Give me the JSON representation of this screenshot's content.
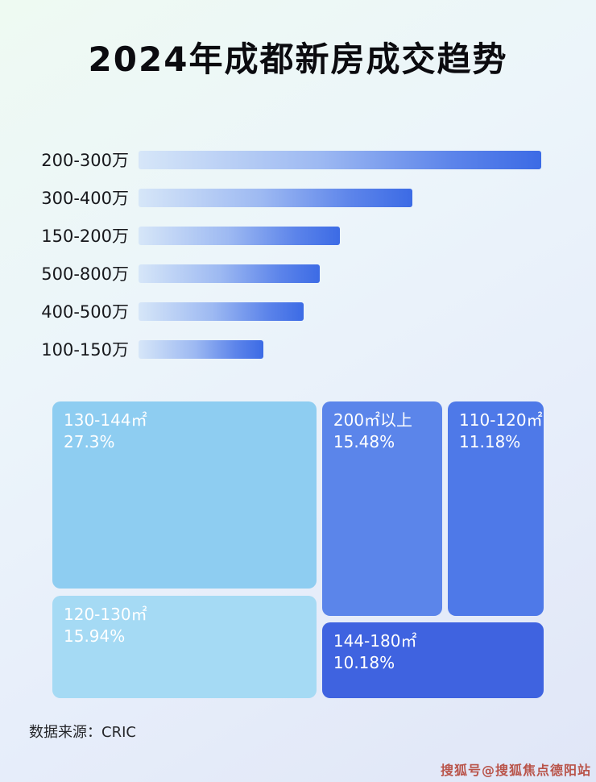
{
  "page": {
    "title": "2024年成都新房成交趋势",
    "source_label": "数据来源：CRIC",
    "watermark": "搜狐号@搜狐焦点德阳站"
  },
  "colors": {
    "bar_gradient_start": "#d6e6f8",
    "bar_gradient_end": "#3c6be5",
    "watermark_color": "#b23a2c",
    "background_top": "#eefaf2",
    "background_bottom": "#e0e6f7"
  },
  "chart_data": [
    {
      "type": "bar",
      "title": "2024年成都新房成交趋势",
      "orientation": "horizontal",
      "categories": [
        "200-300万",
        "300-400万",
        "150-200万",
        "500-800万",
        "400-500万",
        "100-150万"
      ],
      "values_pct_of_max": [
        100,
        68,
        50,
        45,
        41,
        31
      ],
      "axis_labels_shown": false,
      "grid": false,
      "legend": false
    },
    {
      "type": "treemap",
      "items": [
        {
          "label": "130-144㎡",
          "share": "27.3%",
          "color": "#8ecdf1",
          "x": 0,
          "y": 0,
          "w": 53.8,
          "h": 63.0
        },
        {
          "label": "120-130㎡",
          "share": "15.94%",
          "color": "#a5daf4",
          "x": 0,
          "y": 65.4,
          "w": 53.8,
          "h": 34.6
        },
        {
          "label": "200㎡以上",
          "share": "15.48%",
          "color": "#5b85ea",
          "x": 54.9,
          "y": 0,
          "w": 24.5,
          "h": 72.3
        },
        {
          "label": "110-120㎡",
          "share": "11.18%",
          "color": "#4e79e8",
          "x": 80.5,
          "y": 0,
          "w": 19.5,
          "h": 72.3
        },
        {
          "label": "144-180㎡",
          "share": "10.18%",
          "color": "#3f63e0",
          "x": 54.9,
          "y": 74.5,
          "w": 45.1,
          "h": 25.5
        }
      ]
    }
  ]
}
